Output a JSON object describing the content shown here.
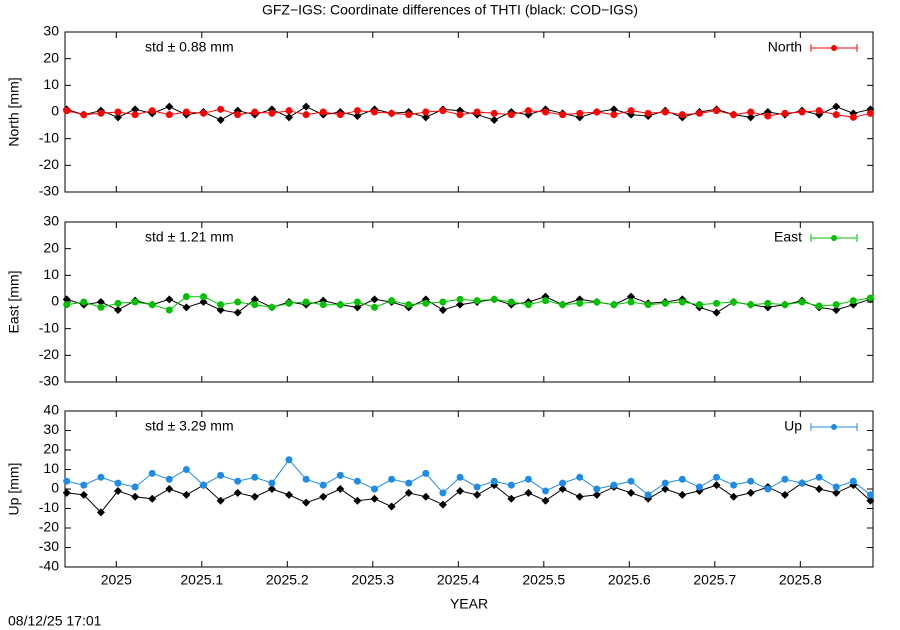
{
  "timestamp": "08/12/25 17:01",
  "chart_data": [
    {
      "type": "line",
      "title": "GFZ−IGS: Coordinate differences of THTI (black: COD−IGS)",
      "ylabel": "North [mm]",
      "annotation": "std ± 0.88 mm",
      "legend": "upper right",
      "xlim": [
        2024.94,
        2025.885
      ],
      "ylim": [
        -30,
        30
      ],
      "yticks": [
        -30,
        -20,
        -10,
        0,
        10,
        20,
        30
      ],
      "x": [
        2024.942,
        2024.962,
        2024.982,
        2025.002,
        2025.022,
        2025.042,
        2025.062,
        2025.082,
        2025.102,
        2025.122,
        2025.142,
        2025.162,
        2025.182,
        2025.202,
        2025.222,
        2025.242,
        2025.262,
        2025.282,
        2025.302,
        2025.322,
        2025.342,
        2025.362,
        2025.382,
        2025.402,
        2025.422,
        2025.442,
        2025.462,
        2025.482,
        2025.502,
        2025.522,
        2025.542,
        2025.562,
        2025.582,
        2025.602,
        2025.622,
        2025.642,
        2025.662,
        2025.682,
        2025.702,
        2025.722,
        2025.742,
        2025.762,
        2025.782,
        2025.802,
        2025.822,
        2025.842,
        2025.862,
        2025.882
      ],
      "series": [
        {
          "color": "#000000",
          "values": [
            1,
            -1,
            0.5,
            -2,
            1,
            -0.5,
            2,
            -1,
            0,
            -3,
            0.5,
            -1,
            1,
            -2,
            2,
            -1,
            0,
            -1.5,
            1,
            -0.5,
            0,
            -2,
            1,
            0.5,
            -1,
            -3,
            0,
            -1,
            1,
            -0.5,
            -2,
            0,
            1,
            -1,
            -1.5,
            0.5,
            -2,
            0,
            1,
            -1,
            -2,
            0,
            -1,
            0.5,
            -1,
            2,
            -0.5,
            1
          ]
        },
        {
          "name": "North",
          "color": "#ff0000",
          "values": [
            0.5,
            -1,
            -0.5,
            0,
            -1,
            0.5,
            -1,
            0,
            -0.5,
            1,
            -1,
            0,
            -0.5,
            0.5,
            -1,
            0,
            -1,
            0.5,
            0,
            -0.5,
            -1,
            0,
            0.5,
            -1,
            0,
            -0.5,
            -1,
            0.5,
            0,
            -1,
            -0.5,
            0,
            -1,
            0.5,
            -0.5,
            0,
            -1,
            -0.5,
            0.5,
            -1,
            0,
            -1.5,
            -0.5,
            0,
            0.5,
            -1,
            -2,
            -0.5
          ]
        }
      ]
    },
    {
      "type": "line",
      "ylabel": "East [mm]",
      "annotation": "std ± 1.21 mm",
      "legend": "upper right",
      "xlim": [
        2024.94,
        2025.885
      ],
      "ylim": [
        -30,
        30
      ],
      "yticks": [
        -30,
        -20,
        -10,
        0,
        10,
        20,
        30
      ],
      "x": [
        2024.942,
        2024.962,
        2024.982,
        2025.002,
        2025.022,
        2025.042,
        2025.062,
        2025.082,
        2025.102,
        2025.122,
        2025.142,
        2025.162,
        2025.182,
        2025.202,
        2025.222,
        2025.242,
        2025.262,
        2025.282,
        2025.302,
        2025.322,
        2025.342,
        2025.362,
        2025.382,
        2025.402,
        2025.422,
        2025.442,
        2025.462,
        2025.482,
        2025.502,
        2025.522,
        2025.542,
        2025.562,
        2025.582,
        2025.602,
        2025.622,
        2025.642,
        2025.662,
        2025.682,
        2025.702,
        2025.722,
        2025.742,
        2025.762,
        2025.782,
        2025.802,
        2025.822,
        2025.842,
        2025.862,
        2025.882
      ],
      "series": [
        {
          "color": "#000000",
          "values": [
            1,
            -1,
            0,
            -3,
            0.5,
            -1,
            1,
            -2,
            0,
            -3,
            -4,
            1,
            -2,
            0,
            -1,
            0.5,
            -1,
            -2,
            1,
            0,
            -2,
            1,
            -3,
            -1,
            0,
            1,
            -1,
            0,
            2,
            -1,
            1,
            0,
            -1,
            2,
            -0.5,
            0,
            1,
            -2,
            -4,
            0,
            -1,
            -2,
            -1,
            0.5,
            -2,
            -3,
            -1,
            1
          ]
        },
        {
          "name": "East",
          "color": "#00c000",
          "values": [
            -1,
            0,
            -2,
            -0.5,
            0,
            -1,
            -3,
            2,
            2,
            -1,
            0,
            -1,
            -2,
            -0.5,
            0,
            -1,
            -1,
            0,
            -2,
            0.5,
            -1,
            -0.5,
            0,
            1,
            0.5,
            1,
            0,
            -1,
            0.5,
            -1,
            -0.5,
            0,
            -1,
            0,
            -1,
            -0.5,
            0,
            -1,
            -0.5,
            0,
            -1,
            -0.5,
            -1,
            0,
            -1.5,
            -1,
            0.5,
            1.5
          ]
        }
      ]
    },
    {
      "type": "line",
      "ylabel": "Up [mm]",
      "xlabel": "YEAR",
      "annotation": "std ± 3.29 mm",
      "legend": "upper right",
      "xlim": [
        2024.94,
        2025.885
      ],
      "ylim": [
        -40,
        40
      ],
      "yticks": [
        -40,
        -30,
        -20,
        -10,
        0,
        10,
        20,
        30,
        40
      ],
      "xticks": [
        2025,
        2025.1,
        2025.2,
        2025.3,
        2025.4,
        2025.5,
        2025.6,
        2025.7,
        2025.8
      ],
      "x": [
        2024.942,
        2024.962,
        2024.982,
        2025.002,
        2025.022,
        2025.042,
        2025.062,
        2025.082,
        2025.102,
        2025.122,
        2025.142,
        2025.162,
        2025.182,
        2025.202,
        2025.222,
        2025.242,
        2025.262,
        2025.282,
        2025.302,
        2025.322,
        2025.342,
        2025.362,
        2025.382,
        2025.402,
        2025.422,
        2025.442,
        2025.462,
        2025.482,
        2025.502,
        2025.522,
        2025.542,
        2025.562,
        2025.582,
        2025.602,
        2025.622,
        2025.642,
        2025.662,
        2025.682,
        2025.702,
        2025.722,
        2025.742,
        2025.762,
        2025.782,
        2025.802,
        2025.822,
        2025.842,
        2025.862,
        2025.882
      ],
      "series": [
        {
          "color": "#000000",
          "values": [
            -2,
            -3,
            -12,
            -1,
            -4,
            -5,
            0,
            -3,
            2,
            -6,
            -2,
            -4,
            0,
            -3,
            -7,
            -4,
            0,
            -6,
            -5,
            -9,
            -2,
            -4,
            -8,
            -1,
            -3,
            2,
            -5,
            -2,
            -6,
            0,
            -4,
            -3,
            1,
            -2,
            -5,
            0,
            -3,
            -1,
            2,
            -4,
            -2,
            1,
            -3,
            3,
            0,
            -2,
            2,
            -6
          ]
        },
        {
          "name": "Up",
          "color": "#1e8ce6",
          "values": [
            4,
            2,
            6,
            3,
            1,
            8,
            5,
            10,
            2,
            7,
            4,
            6,
            3,
            15,
            5,
            2,
            7,
            4,
            0,
            5,
            3,
            8,
            -2,
            6,
            1,
            4,
            2,
            5,
            -1,
            3,
            6,
            0,
            2,
            4,
            -3,
            3,
            5,
            1,
            6,
            2,
            4,
            0,
            5,
            3,
            6,
            1,
            4,
            -3
          ]
        }
      ]
    }
  ]
}
